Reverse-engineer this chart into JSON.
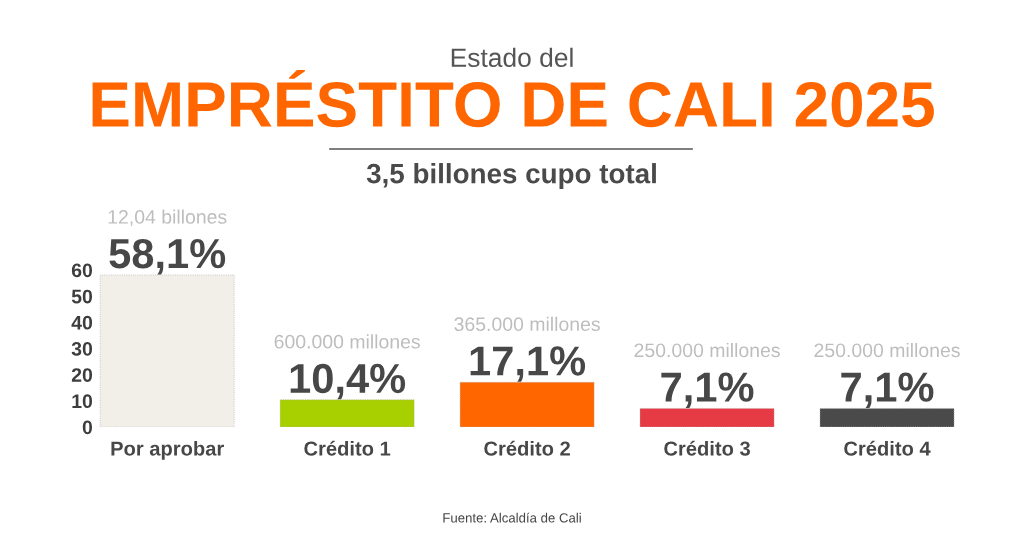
{
  "chart_data": {
    "type": "bar",
    "title": "Estado del\nEMPRÉSTITO DE CALI 2025",
    "subtitle": "3,5 billones cupo total",
    "categories": [
      "Por aprobar",
      "Crédito 1",
      "Crédito 2",
      "Crédito 3",
      "Crédito 4"
    ],
    "values": [
      58.1,
      10.4,
      17.1,
      7.1,
      7.1
    ],
    "colors": [
      "#f2efe8",
      "#a8cf00",
      "#ff6600",
      "#e63a44",
      "#4a4a4a"
    ],
    "value_labels": [
      "58,1%",
      "10,4%",
      "17,1%",
      "7,1%",
      "7,1%"
    ],
    "ylim": [
      0,
      60
    ],
    "yticks": [
      0,
      10,
      20,
      30,
      40,
      50,
      60
    ],
    "annotations": [
      {
        "text": "12,04 billones",
        "x": "Por aprobar",
        "y": 58.1
      },
      {
        "text": "600.000 millones",
        "x": "Crédito 1",
        "y": 10.4
      },
      {
        "text": "365.000 millones",
        "x": "Crédito 2",
        "y": 17.1
      },
      {
        "text": "250.000 millones",
        "x": "Crédito 3",
        "y": 7.1
      },
      {
        "text": "250.000 millones",
        "x": "Crédito 4",
        "y": 7.1
      },
      "Fuente: Alcaldía de Cali"
    ]
  }
}
